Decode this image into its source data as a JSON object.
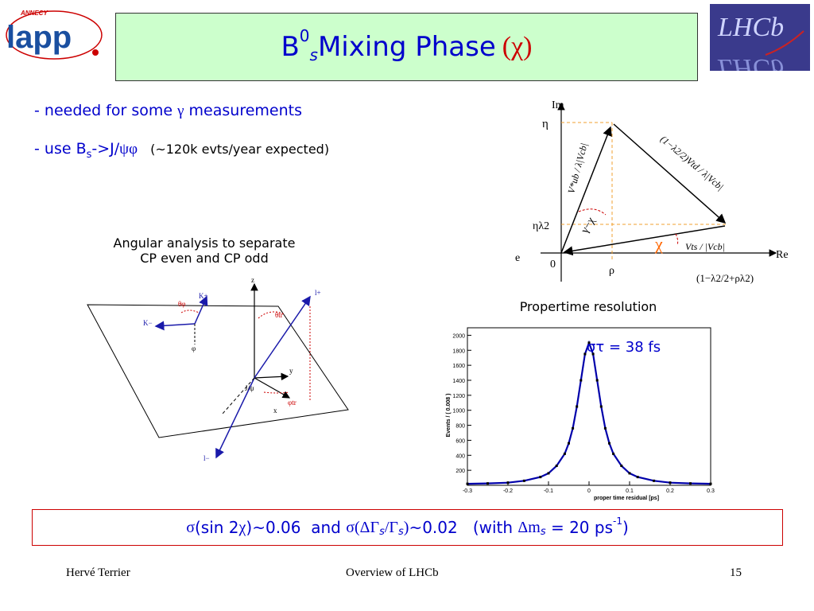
{
  "logos": {
    "lapp_small": "ANNECY",
    "lapp_main": "lapp",
    "lhcb": "LHCb"
  },
  "title": {
    "main": "B",
    "sup": "0",
    "sub": "s",
    "rest": " Mixing Phase",
    "chi": "(χ)"
  },
  "bullets": [
    {
      "prefix": "- needed for some ",
      "symbol": "γ",
      "suffix": " measurements"
    },
    {
      "prefix": "- use B",
      "sub": "s",
      "mid": "->J/",
      "symbol": "ψφ",
      "note": "(~120k evts/year expected)"
    }
  ],
  "triangle": {
    "axis_im": "Im",
    "axis_re": "Re",
    "eta": "η",
    "eta_lambda2": "ηλ2",
    "e": "e",
    "zero": "0",
    "rho": "ρ",
    "gamma_chi": "γ−χ",
    "chi": "χ",
    "vub": "V*ub / λ|Vcb|",
    "vtd": "(1−λ2/2)Vtd / λ|Vcb|",
    "vts": "Vts / |Vcb|",
    "bottom": "(1−λ2/2+ρλ2)"
  },
  "angular": {
    "caption_line1": "Angular analysis to separate",
    "caption_line2": "CP even and CP odd",
    "labels": {
      "z": "z",
      "y": "y",
      "x": "x",
      "jpsi": "J/ψ",
      "theta_phi": "θφ",
      "theta_tr": "θtr",
      "phi_tr": "φtr",
      "phi": "φ",
      "kplus": "K+",
      "kminus": "K−",
      "lplus": "l+",
      "lminus": "l−"
    }
  },
  "resolution": {
    "caption": "Propertime resolution",
    "sigma_label": "στ = 38 fs",
    "ylabel": "Events / ( 0.008 )",
    "xlabel": "proper time residual [ps]"
  },
  "chart_data": {
    "type": "scatter",
    "title": "Propertime resolution",
    "xlabel": "proper time residual [ps]",
    "ylabel": "Events / ( 0.008 )",
    "xlim": [
      -0.3,
      0.3
    ],
    "ylim": [
      0,
      2100
    ],
    "xticks": [
      -0.3,
      -0.2,
      -0.1,
      0,
      0.1,
      0.2,
      0.3
    ],
    "yticks": [
      200,
      400,
      600,
      800,
      1000,
      1200,
      1400,
      1600,
      1800,
      2000
    ],
    "x": [
      -0.3,
      -0.25,
      -0.2,
      -0.16,
      -0.12,
      -0.1,
      -0.08,
      -0.06,
      -0.05,
      -0.04,
      -0.03,
      -0.02,
      -0.01,
      0,
      0.01,
      0.02,
      0.03,
      0.04,
      0.05,
      0.06,
      0.08,
      0.1,
      0.12,
      0.16,
      0.2,
      0.25,
      0.3
    ],
    "values": [
      20,
      25,
      35,
      60,
      110,
      160,
      260,
      420,
      560,
      760,
      1050,
      1400,
      1750,
      1900,
      1750,
      1400,
      1050,
      760,
      560,
      420,
      260,
      160,
      110,
      60,
      35,
      25,
      20
    ],
    "grid": false
  },
  "summary": {
    "sigma1": "σ",
    "part1": "(sin 2",
    "chi": "χ",
    "part2": ")~0.06  and ",
    "sigma2": "σ(",
    "dgamma": "ΔΓ",
    "s1": "s",
    "slash": "/Γ",
    "s2": "s",
    "close": ")",
    "part3": "~0.02   (with ",
    "dm": "Δm",
    "s3": "s",
    "part4": " = 20 ps",
    "exp": "-1",
    "part5": ")"
  },
  "footer": {
    "author": "Hervé Terrier",
    "talk": "Overview of LHCb",
    "page": "15"
  },
  "colors": {
    "title_bg": "#ccffcc",
    "blue": "#0000cc",
    "red": "#cc0000",
    "lhcb_bg": "#3a3a8c",
    "curve": "#0000aa"
  }
}
